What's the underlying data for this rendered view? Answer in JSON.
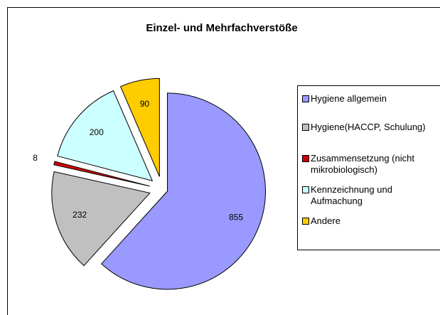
{
  "chart_data": {
    "type": "pie",
    "title": "Einzel- und Mehrfachverstöße",
    "categories": [
      "Hygiene allgemein",
      "Hygiene(HACCP, Schulung)",
      "Zusammensetzung (nicht mikrobiologisch)",
      "Kennzeichnung und Aufmachung",
      "Andere"
    ],
    "values": [
      855,
      232,
      8,
      200,
      90
    ],
    "colors": [
      "#9999ff",
      "#c0c0c0",
      "#cc0000",
      "#ccffff",
      "#ffcc00"
    ],
    "legend": "right"
  }
}
